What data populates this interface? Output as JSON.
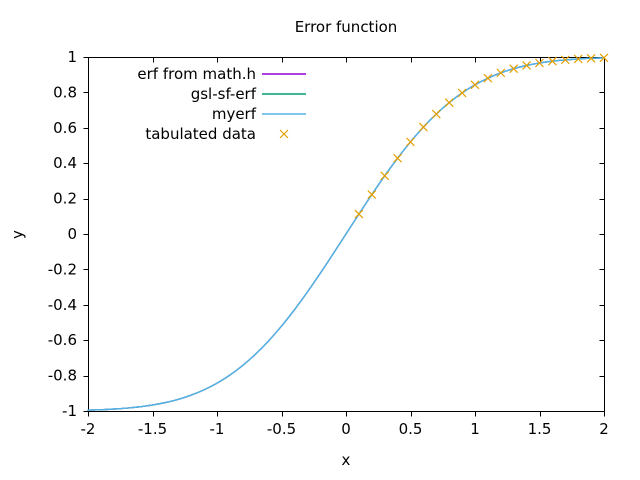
{
  "window": {
    "title": "Error function plot"
  },
  "chart_data": {
    "type": "line",
    "title": "Error function",
    "xlabel": "x",
    "ylabel": "y",
    "xlim": [
      -2,
      2
    ],
    "ylim": [
      -1,
      1
    ],
    "grid": false,
    "legend_position": "top-left-inside",
    "x_ticks": [
      -2,
      -1.5,
      -1,
      -0.5,
      0,
      0.5,
      1,
      1.5,
      2
    ],
    "x_tick_labels": [
      "-2",
      "-1.5",
      "-1",
      "-0.5",
      "0",
      "0.5",
      "1",
      "1.5",
      "2"
    ],
    "y_ticks": [
      -1,
      -0.8,
      -0.6,
      -0.4,
      -0.2,
      0,
      0.2,
      0.4,
      0.6,
      0.8,
      1
    ],
    "y_tick_labels": [
      "-1",
      "-0.8",
      "-0.6",
      "-0.4",
      "-0.2",
      "0",
      "0.2",
      "0.4",
      "0.6",
      "0.8",
      "1"
    ],
    "x": [
      -2.0,
      -1.9,
      -1.8,
      -1.7,
      -1.6,
      -1.5,
      -1.4,
      -1.3,
      -1.2,
      -1.1,
      -1.0,
      -0.9,
      -0.8,
      -0.7,
      -0.6,
      -0.5,
      -0.4,
      -0.3,
      -0.2,
      -0.1,
      0.0,
      0.1,
      0.2,
      0.3,
      0.4,
      0.5,
      0.6,
      0.7,
      0.8,
      0.9,
      1.0,
      1.1,
      1.2,
      1.3,
      1.4,
      1.5,
      1.6,
      1.7,
      1.8,
      1.9,
      2.0
    ],
    "series": [
      {
        "name": "erf from math.h",
        "type": "line",
        "color": "#9400D3",
        "y": [
          -0.9953,
          -0.9928,
          -0.9891,
          -0.9838,
          -0.9763,
          -0.9661,
          -0.9523,
          -0.934,
          -0.9103,
          -0.8802,
          -0.8427,
          -0.7969,
          -0.7421,
          -0.6778,
          -0.6039,
          -0.5205,
          -0.4284,
          -0.3286,
          -0.2227,
          -0.1125,
          0.0,
          0.1125,
          0.2227,
          0.3286,
          0.4284,
          0.5205,
          0.6039,
          0.6778,
          0.7421,
          0.7969,
          0.8427,
          0.8802,
          0.9103,
          0.934,
          0.9523,
          0.9661,
          0.9763,
          0.9838,
          0.9891,
          0.9928,
          0.9953
        ]
      },
      {
        "name": "gsl-sf-erf",
        "type": "line",
        "color": "#009E73",
        "y": [
          -0.9953,
          -0.9928,
          -0.9891,
          -0.9838,
          -0.9763,
          -0.9661,
          -0.9523,
          -0.934,
          -0.9103,
          -0.8802,
          -0.8427,
          -0.7969,
          -0.7421,
          -0.6778,
          -0.6039,
          -0.5205,
          -0.4284,
          -0.3286,
          -0.2227,
          -0.1125,
          0.0,
          0.1125,
          0.2227,
          0.3286,
          0.4284,
          0.5205,
          0.6039,
          0.6778,
          0.7421,
          0.7969,
          0.8427,
          0.8802,
          0.9103,
          0.934,
          0.9523,
          0.9661,
          0.9763,
          0.9838,
          0.9891,
          0.9928,
          0.9953
        ]
      },
      {
        "name": "myerf",
        "type": "line",
        "color": "#56B4E9",
        "y": [
          -0.9953,
          -0.9928,
          -0.9891,
          -0.9838,
          -0.9763,
          -0.9661,
          -0.9523,
          -0.934,
          -0.9103,
          -0.8802,
          -0.8427,
          -0.7969,
          -0.7421,
          -0.6778,
          -0.6039,
          -0.5205,
          -0.4284,
          -0.3286,
          -0.2227,
          -0.1125,
          0.0,
          0.1125,
          0.2227,
          0.3286,
          0.4284,
          0.5205,
          0.6039,
          0.6778,
          0.7421,
          0.7969,
          0.8427,
          0.8802,
          0.9103,
          0.934,
          0.9523,
          0.9661,
          0.9763,
          0.9838,
          0.9891,
          0.9928,
          0.9953
        ]
      },
      {
        "name": "tabulated data",
        "type": "points",
        "marker": "x",
        "color": "#E69F00",
        "x": [
          0.1,
          0.2,
          0.3,
          0.4,
          0.5,
          0.6,
          0.7,
          0.8,
          0.9,
          1.0,
          1.1,
          1.2,
          1.3,
          1.4,
          1.5,
          1.6,
          1.7,
          1.8,
          1.9,
          2.0
        ],
        "y": [
          0.1125,
          0.2227,
          0.3286,
          0.4284,
          0.5205,
          0.6039,
          0.6778,
          0.7421,
          0.7969,
          0.8427,
          0.8802,
          0.9103,
          0.934,
          0.9523,
          0.9661,
          0.9763,
          0.9838,
          0.9891,
          0.9928,
          0.9953
        ]
      }
    ],
    "colors": {
      "axis": "#000000",
      "background": "#FFFFFF"
    }
  }
}
